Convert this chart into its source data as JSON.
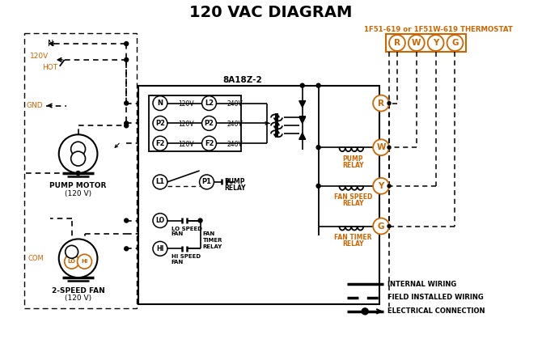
{
  "title": "120 VAC DIAGRAM",
  "title_color": "#000000",
  "title_fontsize": 14,
  "bg_color": "#ffffff",
  "text_color": "#000000",
  "orange_color": "#cc6600",
  "thermostat_label": "1F51-619 or 1F51W-619 THERMOSTAT",
  "controller_label": "8A18Z-2"
}
